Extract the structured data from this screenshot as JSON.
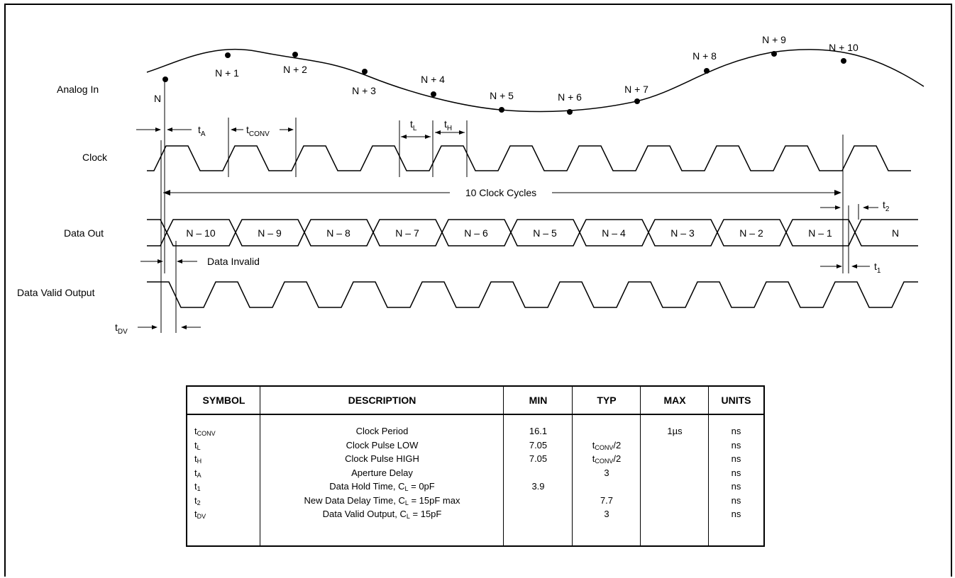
{
  "signals": {
    "analog_in": "Analog In",
    "clock": "Clock",
    "data_out": "Data Out",
    "data_valid_output": "Data Valid Output"
  },
  "sample_points": [
    "N",
    "N + 1",
    "N + 2",
    "N + 3",
    "N + 4",
    "N + 5",
    "N + 6",
    "N + 7",
    "N + 8",
    "N + 9",
    "N + 10"
  ],
  "data_words": [
    "N – 10",
    "N – 9",
    "N – 8",
    "N – 7",
    "N – 6",
    "N – 5",
    "N – 4",
    "N – 3",
    "N – 2",
    "N – 1",
    "N"
  ],
  "annotations": {
    "clock_cycles": "10 Clock Cycles",
    "data_invalid": "Data Invalid",
    "t_a": {
      "main": "t",
      "sub": "A"
    },
    "t_conv": {
      "main": "t",
      "sub": "CONV"
    },
    "t_l": {
      "main": "t",
      "sub": "L"
    },
    "t_h": {
      "main": "t",
      "sub": "H"
    },
    "t_1": {
      "main": "t",
      "sub": "1"
    },
    "t_2": {
      "main": "t",
      "sub": "2"
    },
    "t_dv": {
      "main": "t",
      "sub": "DV"
    }
  },
  "table": {
    "headers": [
      "SYMBOL",
      "DESCRIPTION",
      "MIN",
      "TYP",
      "MAX",
      "UNITS"
    ],
    "rows": [
      {
        "symbol": "t",
        "symbol_sub": "CONV",
        "desc": "Clock Period",
        "desc_sub": "",
        "desc_tail": "",
        "min": "16.1",
        "typ": "",
        "typ_sub": "",
        "typ_tail": "",
        "max": "1µs",
        "units": "ns"
      },
      {
        "symbol": "t",
        "symbol_sub": "L",
        "desc": "Clock Pulse LOW",
        "desc_sub": "",
        "desc_tail": "",
        "min": "7.05",
        "typ": "t",
        "typ_sub": "CONV",
        "typ_tail": "/2",
        "max": "",
        "units": "ns"
      },
      {
        "symbol": "t",
        "symbol_sub": "H",
        "desc": "Clock Pulse HIGH",
        "desc_sub": "",
        "desc_tail": "",
        "min": "7.05",
        "typ": "t",
        "typ_sub": "CONV",
        "typ_tail": "/2",
        "max": "",
        "units": "ns"
      },
      {
        "symbol": "t",
        "symbol_sub": "A",
        "desc": "Aperture Delay",
        "desc_sub": "",
        "desc_tail": "",
        "min": "",
        "typ": "3",
        "typ_sub": "",
        "typ_tail": "",
        "max": "",
        "units": "ns"
      },
      {
        "symbol": "t",
        "symbol_sub": "1",
        "desc": "Data Hold Time, C",
        "desc_sub": "L",
        "desc_tail": " = 0pF",
        "min": "3.9",
        "typ": "",
        "typ_sub": "",
        "typ_tail": "",
        "max": "",
        "units": "ns"
      },
      {
        "symbol": "t",
        "symbol_sub": "2",
        "desc": "New Data Delay Time, C",
        "desc_sub": "L",
        "desc_tail": " = 15pF max",
        "min": "",
        "typ": "7.7",
        "typ_sub": "",
        "typ_tail": "",
        "max": "",
        "units": "ns"
      },
      {
        "symbol": "t",
        "symbol_sub": "DV",
        "desc": "Data Valid Output, C",
        "desc_sub": "L",
        "desc_tail": " = 15pF",
        "min": "",
        "typ": "3",
        "typ_sub": "",
        "typ_tail": "",
        "max": "",
        "units": "ns"
      }
    ]
  }
}
